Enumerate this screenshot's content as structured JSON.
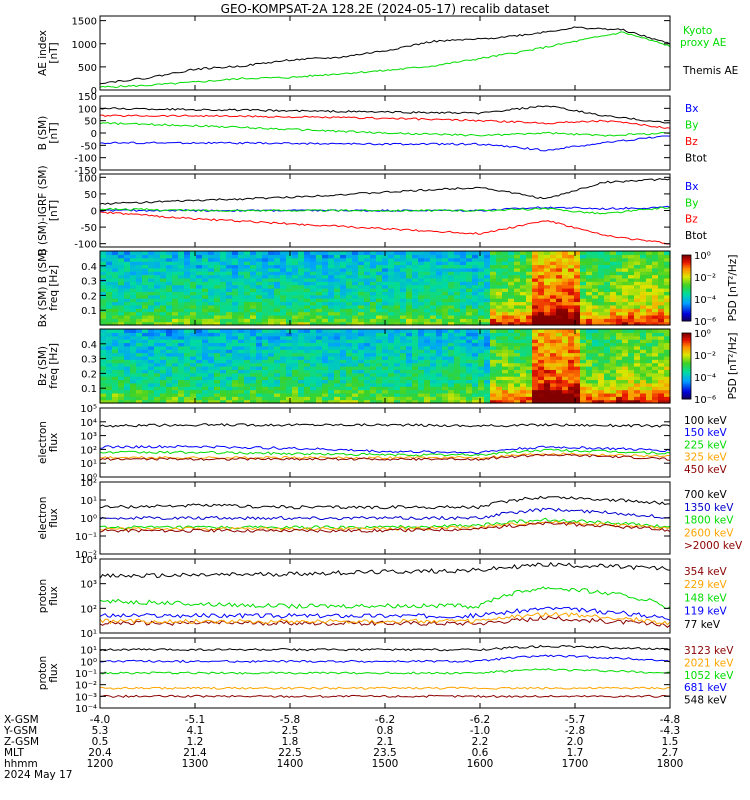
{
  "title": "GEO-KOMPSAT-2A 128.2E (2024-05-17) recalib dataset",
  "colors": {
    "black": "#000000",
    "blue": "#0000ff",
    "green": "#00dd00",
    "red": "#ff0000",
    "orange": "#ffa500",
    "darkred": "#8b0000",
    "navy": "#0000cd"
  },
  "chart_data": [
    {
      "type": "line",
      "ylabel": "AE index [nT]",
      "yticks": [
        "0",
        "500",
        "1000",
        "1500"
      ],
      "ylim": [
        0,
        1600
      ],
      "series": [
        {
          "name": "Kyoto proxy AE",
          "color": "#00dd00",
          "x": [
            12.0,
            12.5,
            13.0,
            13.5,
            14.0,
            14.5,
            15.0,
            15.5,
            16.0,
            16.5,
            17.0,
            17.5,
            18.0
          ],
          "values": [
            60,
            100,
            170,
            250,
            270,
            350,
            420,
            520,
            680,
            850,
            1050,
            1250,
            950
          ]
        },
        {
          "name": "Themis AE",
          "color": "#000000",
          "x": [
            12.0,
            12.5,
            13.0,
            13.5,
            14.0,
            14.5,
            15.0,
            15.5,
            16.0,
            16.5,
            17.0,
            17.5,
            18.0
          ],
          "values": [
            150,
            260,
            450,
            520,
            650,
            700,
            850,
            1050,
            1100,
            1200,
            1350,
            1300,
            1000
          ]
        }
      ]
    },
    {
      "type": "line",
      "ylabel": "B (SM) [nT]",
      "yticks": [
        "-150",
        "-100",
        "-50",
        "0",
        "50",
        "100",
        "150"
      ],
      "ylim": [
        -150,
        150
      ],
      "series": [
        {
          "name": "Bx",
          "color": "#0000ff",
          "x": [
            12,
            13,
            14,
            15,
            16,
            16.7,
            17.3,
            18
          ],
          "values": [
            -40,
            -40,
            -42,
            -45,
            -45,
            -70,
            -40,
            -10
          ]
        },
        {
          "name": "By",
          "color": "#00dd00",
          "x": [
            12,
            13,
            14,
            15,
            16,
            16.7,
            17.3,
            18
          ],
          "values": [
            40,
            30,
            15,
            0,
            -10,
            0,
            -10,
            0
          ]
        },
        {
          "name": "Bz",
          "color": "#ff0000",
          "x": [
            12,
            13,
            14,
            15,
            16,
            16.7,
            17.3,
            18
          ],
          "values": [
            70,
            70,
            65,
            60,
            50,
            40,
            50,
            20
          ]
        },
        {
          "name": "Btot",
          "color": "#000000",
          "x": [
            12,
            13,
            14,
            15,
            16,
            16.7,
            17.3,
            18
          ],
          "values": [
            100,
            95,
            90,
            85,
            80,
            110,
            70,
            40
          ]
        }
      ]
    },
    {
      "type": "line",
      "ylabel": "B (SM)-IGRF (SM) [nT]",
      "yticks": [
        "-100",
        "-50",
        "0",
        "50",
        "100"
      ],
      "ylim": [
        -110,
        110
      ],
      "series": [
        {
          "name": "Bx",
          "color": "#0000ff",
          "x": [
            12,
            13,
            14,
            15,
            16,
            16.7,
            17.3,
            18
          ],
          "values": [
            0,
            0,
            0,
            0,
            0,
            10,
            5,
            10
          ]
        },
        {
          "name": "By",
          "color": "#00dd00",
          "x": [
            12,
            13,
            14,
            15,
            16,
            16.7,
            17.3,
            18
          ],
          "values": [
            5,
            0,
            0,
            0,
            0,
            5,
            -10,
            10
          ]
        },
        {
          "name": "Bz",
          "color": "#ff0000",
          "x": [
            12,
            13,
            14,
            15,
            16,
            16.7,
            17.3,
            18
          ],
          "values": [
            -5,
            -25,
            -40,
            -55,
            -70,
            -30,
            -75,
            -100
          ]
        },
        {
          "name": "Btot",
          "color": "#000000",
          "x": [
            12,
            13,
            14,
            15,
            16,
            16.7,
            17.3,
            18
          ],
          "values": [
            20,
            30,
            40,
            55,
            70,
            35,
            85,
            95
          ]
        }
      ]
    },
    {
      "type": "heatmap",
      "ylabel": "Bx (SM) freq [Hz]",
      "yticks": [
        "0.1",
        "0.2",
        "0.3",
        "0.4"
      ],
      "ylim": [
        0,
        0.5
      ],
      "colorbar_label": "PSD [nT²/Hz]",
      "colorbar_ticks": [
        "10⁰",
        "10⁻²",
        "10⁻⁴",
        "10⁻⁶"
      ],
      "colorbar_range": [
        -6,
        0
      ]
    },
    {
      "type": "heatmap",
      "ylabel": "Bz (SM) freq [Hz]",
      "yticks": [
        "0.1",
        "0.2",
        "0.3",
        "0.4"
      ],
      "ylim": [
        0,
        0.5
      ],
      "colorbar_label": "PSD [nT²/Hz]",
      "colorbar_ticks": [
        "10⁰",
        "10⁻²",
        "10⁻⁴",
        "10⁻⁶"
      ],
      "colorbar_range": [
        -6,
        0
      ]
    },
    {
      "type": "line",
      "yscale": "log",
      "ylabel": "electron flux",
      "yticks": [
        "10⁰",
        "10¹",
        "10²",
        "10³",
        "10⁴",
        "10⁵"
      ],
      "ylim": [
        1,
        100000
      ],
      "series": [
        {
          "name": "100 keV",
          "color": "#000000",
          "x": [
            12,
            13,
            14,
            15,
            16,
            16.7,
            18
          ],
          "values": [
            5000,
            6000,
            6000,
            6000,
            5000,
            6000,
            5000
          ]
        },
        {
          "name": "150 keV",
          "color": "#0000ff",
          "x": [
            12,
            13,
            14,
            15,
            16,
            16.7,
            18
          ],
          "values": [
            150,
            160,
            120,
            70,
            60,
            150,
            80
          ]
        },
        {
          "name": "225 keV",
          "color": "#00dd00",
          "x": [
            12,
            13,
            14,
            15,
            16,
            16.7,
            18
          ],
          "values": [
            60,
            60,
            50,
            40,
            40,
            90,
            50
          ]
        },
        {
          "name": "325 keV",
          "color": "#ffa500",
          "x": [
            12,
            13,
            14,
            15,
            16,
            16.7,
            18
          ],
          "values": [
            25,
            25,
            25,
            25,
            25,
            50,
            30
          ]
        },
        {
          "name": "450 keV",
          "color": "#8b0000",
          "x": [
            12,
            13,
            14,
            15,
            16,
            16.7,
            18
          ],
          "values": [
            20,
            20,
            20,
            20,
            20,
            40,
            20
          ]
        }
      ]
    },
    {
      "type": "line",
      "yscale": "log",
      "ylabel": "electron flux",
      "yticks": [
        "10⁻²",
        "10⁻¹",
        "10⁰",
        "10¹",
        "10²"
      ],
      "ylim": [
        0.01,
        100
      ],
      "series": [
        {
          "name": "700 keV",
          "color": "#000000",
          "x": [
            12,
            13,
            14,
            15,
            16,
            16.7,
            18
          ],
          "values": [
            4,
            5,
            4,
            4,
            4,
            15,
            6
          ]
        },
        {
          "name": "1350 keV",
          "color": "#0000cd",
          "x": [
            12,
            13,
            14,
            15,
            16,
            16.7,
            18
          ],
          "values": [
            1,
            1,
            1,
            1,
            1,
            3,
            1
          ]
        },
        {
          "name": "1800 keV",
          "color": "#00dd00",
          "x": [
            12,
            13,
            14,
            15,
            16,
            16.7,
            18
          ],
          "values": [
            0.3,
            0.3,
            0.3,
            0.3,
            0.4,
            0.8,
            0.3
          ]
        },
        {
          "name": "2600 keV",
          "color": "#ffa500",
          "x": [
            12,
            13,
            14,
            15,
            16,
            16.7,
            18
          ],
          "values": [
            0.25,
            0.25,
            0.25,
            0.25,
            0.3,
            0.6,
            0.25
          ]
        },
        {
          "name": ">2000 keV",
          "color": "#8b0000",
          "x": [
            12,
            13,
            14,
            15,
            16,
            16.7,
            18
          ],
          "values": [
            0.2,
            0.2,
            0.2,
            0.2,
            0.25,
            0.5,
            0.2
          ]
        }
      ]
    },
    {
      "type": "line",
      "yscale": "log",
      "ylabel": "proton flux",
      "yticks": [
        "10¹",
        "10²",
        "10³",
        "10⁴"
      ],
      "ylim": [
        10,
        10000
      ],
      "series": [
        {
          "name": "354 keV",
          "color": "#8b0000",
          "x": [
            12,
            13,
            14,
            15,
            16,
            16.7,
            18
          ],
          "values": [
            25,
            25,
            25,
            25,
            25,
            40,
            20
          ]
        },
        {
          "name": "229 keV",
          "color": "#ffa500",
          "x": [
            12,
            13,
            14,
            15,
            16,
            16.7,
            18
          ],
          "values": [
            30,
            30,
            30,
            30,
            30,
            60,
            25
          ]
        },
        {
          "name": "148 keV",
          "color": "#00dd00",
          "x": [
            12,
            13,
            14,
            15,
            16,
            16.7,
            18
          ],
          "values": [
            200,
            150,
            120,
            130,
            120,
            700,
            100
          ]
        },
        {
          "name": "119 keV",
          "color": "#0000ff",
          "x": [
            12,
            13,
            14,
            15,
            16,
            16.7,
            18
          ],
          "values": [
            50,
            50,
            50,
            50,
            50,
            100,
            40
          ]
        },
        {
          "name": "77 keV",
          "color": "#000000",
          "x": [
            12,
            13,
            14,
            15,
            16,
            16.7,
            18
          ],
          "values": [
            2000,
            2200,
            2500,
            3000,
            3500,
            6000,
            4000
          ]
        }
      ]
    },
    {
      "type": "line",
      "yscale": "log",
      "ylabel": "proton flux",
      "yticks": [
        "10⁻⁴",
        "10⁻³",
        "10⁻²",
        "10⁻¹",
        "10⁰",
        "10¹"
      ],
      "ylim": [
        0.0001,
        100
      ],
      "series": [
        {
          "name": "3123 keV",
          "color": "#8b0000",
          "x": [
            12,
            13,
            14,
            15,
            16,
            16.7,
            18
          ],
          "values": [
            0.001,
            0.001,
            0.001,
            0.001,
            0.001,
            0.001,
            0.001
          ]
        },
        {
          "name": "2021 keV",
          "color": "#ffa500",
          "x": [
            12,
            13,
            14,
            15,
            16,
            16.7,
            18
          ],
          "values": [
            0.005,
            0.005,
            0.005,
            0.005,
            0.005,
            0.005,
            0.005
          ]
        },
        {
          "name": "1052 keV",
          "color": "#00dd00",
          "x": [
            12,
            13,
            14,
            15,
            16,
            16.7,
            18
          ],
          "values": [
            0.1,
            0.1,
            0.1,
            0.1,
            0.1,
            0.2,
            0.1
          ]
        },
        {
          "name": "681 keV",
          "color": "#0000ff",
          "x": [
            12,
            13,
            14,
            15,
            16,
            16.7,
            18
          ],
          "values": [
            1,
            1,
            1,
            1,
            1,
            3,
            1
          ]
        },
        {
          "name": "548 keV",
          "color": "#000000",
          "x": [
            12,
            13,
            14,
            15,
            16,
            16.7,
            18
          ],
          "values": [
            10,
            10,
            10,
            10,
            10,
            20,
            10
          ]
        }
      ]
    }
  ],
  "xaxis": {
    "rows": [
      {
        "label": "X-GSM",
        "values": [
          "-4.0",
          "-5.1",
          "-5.8",
          "-6.2",
          "-6.2",
          "-5.7",
          "-4.8"
        ]
      },
      {
        "label": "Y-GSM",
        "values": [
          "5.3",
          "4.1",
          "2.5",
          "0.8",
          "-1.0",
          "-2.8",
          "-4.3"
        ]
      },
      {
        "label": "Z-GSM",
        "values": [
          "0.5",
          "1.2",
          "1.8",
          "2.1",
          "2.2",
          "2.0",
          "1.5"
        ]
      },
      {
        "label": "MLT",
        "values": [
          "20.4",
          "21.4",
          "22.5",
          "23.5",
          "0.6",
          "1.7",
          "2.7"
        ]
      },
      {
        "label": "hhmm",
        "values": [
          "1200",
          "1300",
          "1400",
          "1500",
          "1600",
          "1700",
          "1800"
        ]
      }
    ],
    "date": "2024 May 17"
  }
}
